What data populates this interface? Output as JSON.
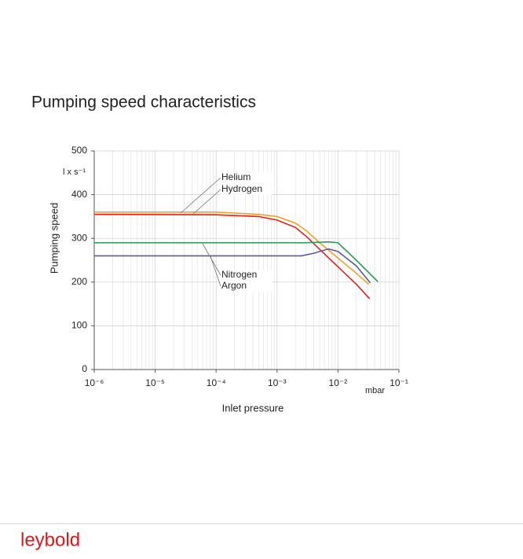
{
  "chart_data": {
    "type": "line",
    "title": "Pumping speed characteristics",
    "x_label": "Inlet pressure",
    "y_label": "Pumping speed",
    "x_unit": "mbar",
    "y_unit": "l x s⁻¹",
    "xscale": "log",
    "grid": true,
    "xlim": [
      1e-06,
      0.1
    ],
    "xticks": [
      {
        "value": 1e-06,
        "label": "10⁻⁶"
      },
      {
        "value": 1e-05,
        "label": "10⁻⁵"
      },
      {
        "value": 0.0001,
        "label": "10⁻⁴"
      },
      {
        "value": 0.001,
        "label": "10⁻³"
      },
      {
        "value": 0.01,
        "label": "10⁻²"
      },
      {
        "value": 0.1,
        "label": "10⁻¹"
      }
    ],
    "ylim": [
      0,
      500
    ],
    "yticks": [
      0,
      100,
      200,
      300,
      400,
      500
    ],
    "series": [
      {
        "name": "Helium",
        "color": "#f0a020",
        "x": [
          1e-06,
          0.0001,
          0.0005,
          0.001,
          0.002,
          0.003,
          0.005,
          0.01,
          0.02,
          0.032
        ],
        "values": [
          360,
          360,
          355,
          350,
          335,
          318,
          290,
          255,
          220,
          195
        ]
      },
      {
        "name": "Hydrogen",
        "color": "#e02020",
        "x": [
          1e-06,
          0.0001,
          0.0005,
          0.001,
          0.002,
          0.003,
          0.005,
          0.01,
          0.02,
          0.033
        ],
        "values": [
          355,
          354,
          350,
          342,
          325,
          305,
          275,
          235,
          195,
          162
        ]
      },
      {
        "name": "Nitrogen",
        "color": "#2a9a5a",
        "x": [
          1e-06,
          0.003,
          0.007,
          0.01,
          0.02,
          0.045
        ],
        "values": [
          290,
          290,
          292,
          290,
          250,
          201
        ]
      },
      {
        "name": "Argon",
        "color": "#5a5aa0",
        "x": [
          1e-06,
          0.0025,
          0.004,
          0.007,
          0.01,
          0.02,
          0.034
        ],
        "values": [
          260,
          260,
          266,
          276,
          270,
          237,
          198
        ]
      }
    ]
  },
  "brand": "leybold"
}
